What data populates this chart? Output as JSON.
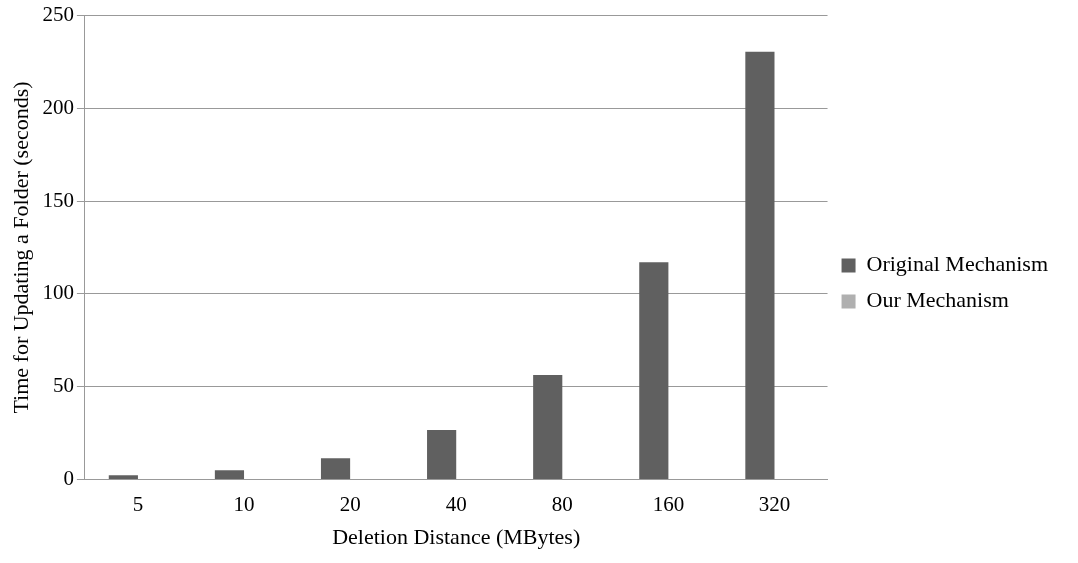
{
  "chart_data": {
    "type": "bar",
    "xlabel": "Deletion Distance (MBytes)",
    "ylabel": "Time for Updating a Folder (seconds)",
    "categories": [
      "5",
      "10",
      "20",
      "40",
      "80",
      "160",
      "320"
    ],
    "series": [
      {
        "name": "Original Mechanism",
        "color": "#606060",
        "values": [
          2.3,
          4.9,
          11.4,
          26.6,
          56.3,
          117,
          230.5
        ]
      },
      {
        "name": "Our Mechanism",
        "color": "#b0b0b0",
        "values": [
          0,
          0,
          0,
          0,
          0,
          0,
          0
        ]
      }
    ],
    "ylim": [
      0,
      250
    ],
    "yticks": [
      0,
      50,
      100,
      150,
      200,
      250
    ],
    "grid": "y",
    "legend": "right"
  }
}
